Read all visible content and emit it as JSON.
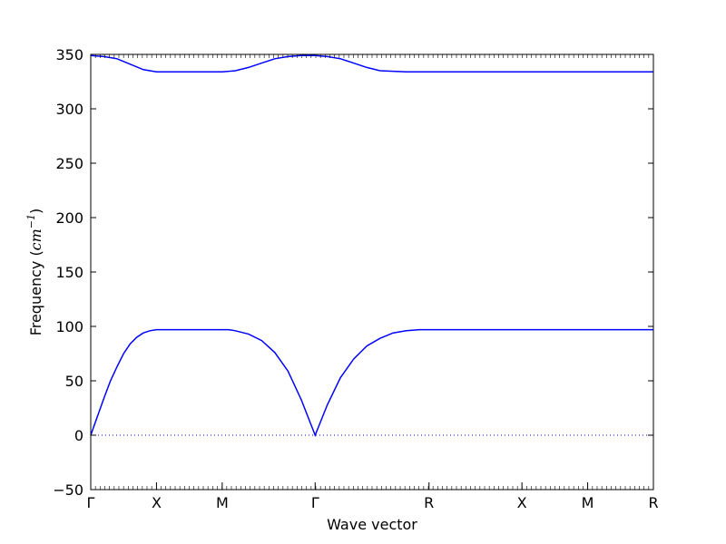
{
  "chart_data": {
    "type": "line",
    "xlabel": "Wave vector",
    "ylabel": "Frequency",
    "ylabel_unit_base": "cm",
    "ylabel_unit_exp": "−1",
    "ylim": [
      -50,
      350
    ],
    "yticks": [
      -50,
      0,
      50,
      100,
      150,
      200,
      250,
      300,
      350
    ],
    "ytick_labels": [
      "−50",
      "0",
      "50",
      "100",
      "150",
      "200",
      "250",
      "300",
      "350"
    ],
    "grid": false,
    "x_path": [
      {
        "label": "Γ",
        "x": 0.0
      },
      {
        "label": "X",
        "x": 0.5
      },
      {
        "label": "M",
        "x": 1.0
      },
      {
        "label": "Γ",
        "x": 1.707
      },
      {
        "label": "R",
        "x": 2.573
      },
      {
        "label": "X",
        "x": 3.28
      },
      {
        "label": "M",
        "x": 3.78
      },
      {
        "label": "R",
        "x": 4.28
      }
    ],
    "zero_line": {
      "y": 0,
      "style": "dotted",
      "color": "#0000ff"
    },
    "series": [
      {
        "color": "#0000ff",
        "points": [
          [
            0.0,
            0
          ],
          [
            0.05,
            17
          ],
          [
            0.1,
            34
          ],
          [
            0.15,
            50
          ],
          [
            0.2,
            63
          ],
          [
            0.25,
            75
          ],
          [
            0.3,
            84
          ],
          [
            0.35,
            90
          ],
          [
            0.4,
            94
          ],
          [
            0.45,
            96
          ],
          [
            0.5,
            97
          ],
          [
            0.75,
            97
          ],
          [
            1.0,
            97
          ],
          [
            1.05,
            97
          ],
          [
            1.1,
            96
          ],
          [
            1.2,
            93
          ],
          [
            1.3,
            87
          ],
          [
            1.4,
            76
          ],
          [
            1.5,
            59
          ],
          [
            1.6,
            33
          ],
          [
            1.707,
            0
          ],
          [
            1.8,
            28
          ],
          [
            1.9,
            53
          ],
          [
            2.0,
            70
          ],
          [
            2.1,
            82
          ],
          [
            2.2,
            89
          ],
          [
            2.3,
            94
          ],
          [
            2.4,
            96
          ],
          [
            2.5,
            97
          ],
          [
            2.573,
            97
          ],
          [
            3.28,
            97
          ],
          [
            3.78,
            97
          ],
          [
            4.28,
            97
          ]
        ]
      },
      {
        "color": "#0000ff",
        "points": [
          [
            0.0,
            349
          ],
          [
            0.1,
            348
          ],
          [
            0.2,
            346
          ],
          [
            0.3,
            341
          ],
          [
            0.4,
            336
          ],
          [
            0.5,
            334
          ],
          [
            0.75,
            334
          ],
          [
            1.0,
            334
          ],
          [
            1.1,
            335
          ],
          [
            1.2,
            338
          ],
          [
            1.3,
            342
          ],
          [
            1.4,
            346
          ],
          [
            1.5,
            348
          ],
          [
            1.6,
            349
          ],
          [
            1.707,
            349
          ],
          [
            1.8,
            348
          ],
          [
            1.9,
            346
          ],
          [
            2.0,
            342
          ],
          [
            2.1,
            338
          ],
          [
            2.2,
            335
          ],
          [
            2.3,
            334.5
          ],
          [
            2.4,
            334
          ],
          [
            2.573,
            334
          ],
          [
            3.28,
            334
          ],
          [
            3.78,
            334
          ],
          [
            4.28,
            334
          ]
        ]
      }
    ]
  }
}
